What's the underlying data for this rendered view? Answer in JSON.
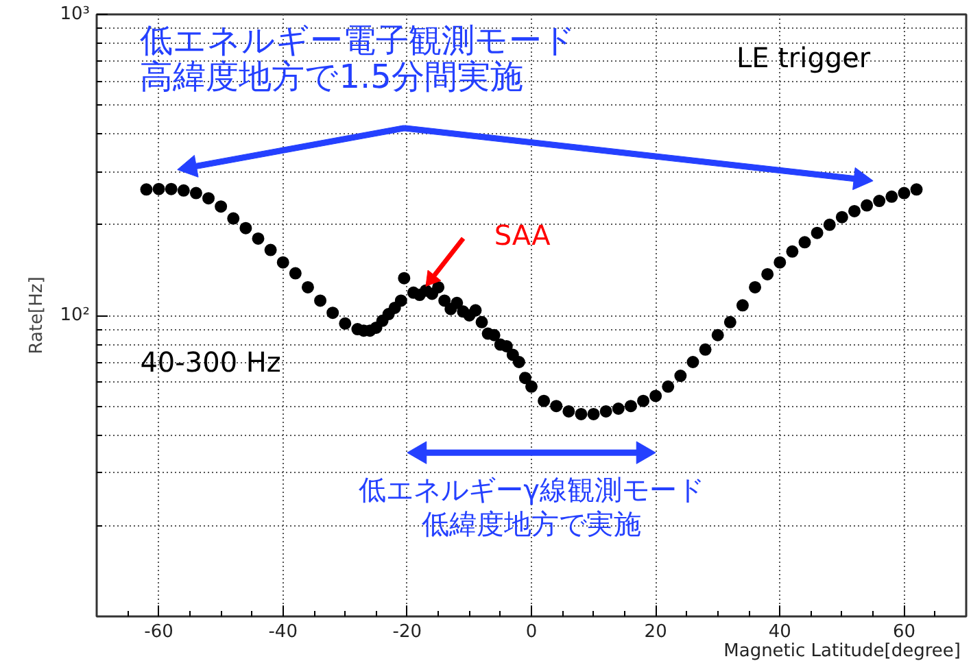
{
  "chart_data": {
    "type": "scatter",
    "xlabel": "Magnetic Latitude[degree]",
    "ylabel": "Rate[Hz]",
    "x": [
      -62,
      -60,
      -58,
      -56,
      -54,
      -52,
      -50,
      -48,
      -46,
      -44,
      -42,
      -40,
      -38,
      -36,
      -34,
      -32,
      -30,
      -28,
      -27,
      -26,
      -25,
      -24,
      -23,
      -22,
      -21,
      -20.5,
      -19,
      -18,
      -17,
      -16,
      -15,
      -14,
      -13,
      -12,
      -11,
      -10,
      -9,
      -8,
      -7,
      -6,
      -5,
      -4,
      -3,
      -2,
      -1,
      0,
      2,
      4,
      6,
      8,
      10,
      12,
      14,
      16,
      18,
      20,
      22,
      24,
      26,
      28,
      30,
      32,
      34,
      36,
      38,
      40,
      42,
      44,
      46,
      48,
      50,
      52,
      54,
      56,
      58,
      60,
      62
    ],
    "series": [
      {
        "color": "#000000",
        "values": [
          262,
          263,
          263,
          260,
          255,
          245,
          230,
          210,
          195,
          180,
          165,
          150,
          138,
          124,
          112,
          102,
          94,
          90,
          89,
          89,
          91,
          96,
          101,
          106,
          112,
          133,
          119,
          117,
          121,
          118,
          124,
          112,
          105,
          110,
          103,
          100,
          104,
          95,
          87,
          86,
          80,
          79,
          74,
          70,
          62,
          58,
          52,
          50,
          48,
          47,
          47,
          48,
          49,
          50,
          52,
          54,
          58,
          63,
          70,
          77,
          86,
          95,
          108,
          124,
          137,
          150,
          163,
          175,
          188,
          200,
          212,
          222,
          232,
          240,
          248,
          255,
          262
        ]
      }
    ],
    "xlim": [
      -70,
      70
    ],
    "ylim": [
      10,
      1000
    ],
    "log": true,
    "xticks": [
      -60,
      -40,
      -20,
      0,
      20,
      40,
      60,
      {
        "value": -65,
        "label": null
      },
      {
        "value": -55,
        "label": null
      },
      {
        "value": -50,
        "label": null
      },
      {
        "value": -45,
        "label": null
      },
      {
        "value": -35,
        "label": null
      },
      {
        "value": -30,
        "label": null
      },
      {
        "value": -25,
        "label": null
      },
      {
        "value": -15,
        "label": null
      },
      {
        "value": -10,
        "label": null
      },
      {
        "value": -5,
        "label": null
      },
      {
        "value": 5,
        "label": null
      },
      {
        "value": 10,
        "label": null
      },
      {
        "value": 15,
        "label": null
      },
      {
        "value": 25,
        "label": null
      },
      {
        "value": 30,
        "label": null
      },
      {
        "value": 35,
        "label": null
      },
      {
        "value": 45,
        "label": null
      },
      {
        "value": 50,
        "label": null
      },
      {
        "value": 55,
        "label": null
      },
      {
        "value": 65,
        "label": null
      }
    ],
    "yticks": [
      {
        "value": 100,
        "label": "10²"
      },
      {
        "value": 1000,
        "label": "10³"
      },
      {
        "value": 20,
        "label": null
      },
      {
        "value": 30,
        "label": null
      },
      {
        "value": 40,
        "label": null
      },
      {
        "value": 50,
        "label": null
      },
      {
        "value": 60,
        "label": null
      },
      {
        "value": 70,
        "label": null
      },
      {
        "value": 80,
        "label": null
      },
      {
        "value": 90,
        "label": null
      },
      {
        "value": 200,
        "label": null
      },
      {
        "value": 300,
        "label": null
      },
      {
        "value": 400,
        "label": null
      },
      {
        "value": 500,
        "label": null
      },
      {
        "value": 600,
        "label": null
      },
      {
        "value": 700,
        "label": null
      },
      {
        "value": 800,
        "label": null
      },
      {
        "value": 900,
        "label": null
      }
    ],
    "grid": true,
    "marker": "circle",
    "annotations": [
      "低エネルギー電子観測モード",
      "高緯度地方で1.5分間実施",
      "LE trigger",
      {
        "text": "SAA",
        "x": -17,
        "y": 125
      },
      "40-300 Hz",
      "低エネルギーγ線観測モード",
      "低緯度地方で実施"
    ]
  }
}
